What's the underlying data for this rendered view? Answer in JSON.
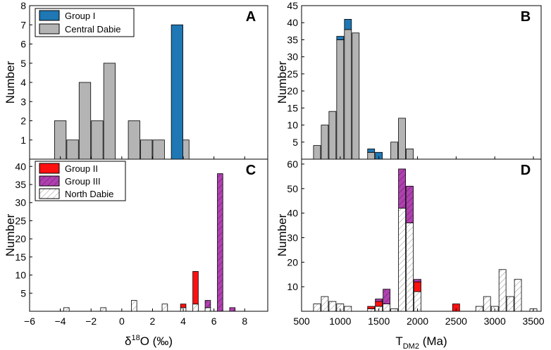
{
  "chart_data": [
    {
      "id": "A",
      "type": "bar",
      "panel_label": "A",
      "xlim": [
        -6,
        9.5
      ],
      "ylim": [
        0,
        8
      ],
      "yticks": [
        1,
        2,
        3,
        4,
        5,
        6,
        7,
        8
      ],
      "ylabel": "Number",
      "bin_width": 0.8,
      "legend": [
        {
          "label": "Group I",
          "style": "groupI"
        },
        {
          "label": "Central Dabie",
          "style": "central"
        }
      ],
      "series": [
        {
          "name": "Central Dabie",
          "style": "central",
          "x": [
            -4,
            -3.2,
            -2.4,
            -1.6,
            -0.8,
            0,
            0.8,
            1.6,
            2.4,
            4.0
          ],
          "values": [
            2,
            1,
            4,
            2,
            5,
            0,
            2,
            1,
            1,
            1
          ]
        },
        {
          "name": "Group I",
          "style": "groupI",
          "x": [
            3.6
          ],
          "values": [
            7
          ]
        }
      ]
    },
    {
      "id": "B",
      "type": "bar",
      "panel_label": "B",
      "xlim": [
        500,
        3600
      ],
      "ylim": [
        0,
        45
      ],
      "yticks": [
        5,
        10,
        15,
        20,
        25,
        30,
        35,
        40,
        45
      ],
      "bin_width": 100,
      "series": [
        {
          "name": "Central Dabie",
          "style": "central",
          "x": [
            700,
            800,
            900,
            1000,
            1100,
            1200,
            1300,
            1400,
            1500,
            1600,
            1700,
            1800,
            1900
          ],
          "values": [
            4,
            10,
            14,
            35,
            38,
            37,
            0,
            2,
            0,
            0,
            5,
            12,
            3
          ]
        },
        {
          "name": "Group I",
          "style": "groupI",
          "x": [
            1000,
            1100,
            1400,
            1500
          ],
          "values": [
            1,
            3,
            1,
            2
          ],
          "base": [
            35,
            38,
            2,
            0
          ]
        }
      ]
    },
    {
      "id": "C",
      "type": "bar",
      "panel_label": "C",
      "xlim": [
        -6,
        9.5
      ],
      "ylim": [
        0,
        42
      ],
      "xticks": [
        -6,
        -4,
        -2,
        0,
        2,
        4,
        6,
        8
      ],
      "yticks": [
        5,
        10,
        15,
        20,
        25,
        30,
        35,
        40
      ],
      "ylabel": "Number",
      "xlabel": "δ",
      "xlabel_sup": "18",
      "xlabel_rest": "O (‰)",
      "bin_width": 0.4,
      "legend": [
        {
          "label": "Group II",
          "style": "groupII"
        },
        {
          "label": "Group III",
          "style": "groupIII"
        },
        {
          "label": "North Dabie",
          "style": "north"
        }
      ],
      "series": [
        {
          "name": "North Dabie",
          "style": "north",
          "x": [
            -3.6,
            -1.2,
            0.8,
            2.8,
            4.0,
            4.8,
            5.6
          ],
          "values": [
            1,
            1,
            3,
            2,
            1,
            2,
            1
          ]
        },
        {
          "name": "Group II",
          "style": "groupII",
          "x": [
            4.0,
            4.8
          ],
          "values": [
            1,
            9
          ],
          "base": [
            1,
            2
          ]
        },
        {
          "name": "Group III",
          "style": "groupIII",
          "x": [
            5.6,
            6.4,
            7.2
          ],
          "values": [
            2,
            38,
            1
          ],
          "base": [
            1,
            0,
            0
          ]
        }
      ]
    },
    {
      "id": "D",
      "type": "bar",
      "panel_label": "D",
      "xlim": [
        500,
        3600
      ],
      "ylim": [
        0,
        62
      ],
      "xticks": [
        500,
        1000,
        1500,
        2000,
        2500,
        3000,
        3500
      ],
      "yticks": [
        10,
        20,
        30,
        40,
        50,
        60
      ],
      "xlabel": "T",
      "xlabel_sub": "DM2",
      "xlabel_rest": " (Ma)",
      "bin_width": 100,
      "series": [
        {
          "name": "North Dabie",
          "style": "north",
          "x": [
            700,
            800,
            900,
            1000,
            1100,
            1400,
            1500,
            1600,
            1700,
            1800,
            1900,
            2000,
            2800,
            2900,
            3000,
            3100,
            3200,
            3300,
            3400,
            3500
          ],
          "values": [
            3,
            6,
            4,
            3,
            2,
            1,
            2,
            3,
            1,
            42,
            36,
            8,
            2,
            6,
            2,
            17,
            6,
            13,
            0,
            1
          ]
        },
        {
          "name": "Group II",
          "style": "groupII",
          "x": [
            1400,
            1500,
            2000,
            2500
          ],
          "values": [
            1,
            2,
            4,
            3
          ],
          "base": [
            1,
            2,
            8,
            0
          ]
        },
        {
          "name": "Group III",
          "style": "groupIII",
          "x": [
            1500,
            1600,
            1800,
            1900,
            2000
          ],
          "values": [
            1,
            6,
            16,
            15,
            1
          ],
          "base": [
            4,
            3,
            42,
            36,
            12
          ]
        }
      ]
    }
  ],
  "colors": {
    "groupI": "#1f77b4",
    "central": "#b4b4b4",
    "groupII": "#ff1010",
    "groupIII": "#b040b0",
    "north": "#ffffff",
    "hatch": "#8a8a8a"
  }
}
